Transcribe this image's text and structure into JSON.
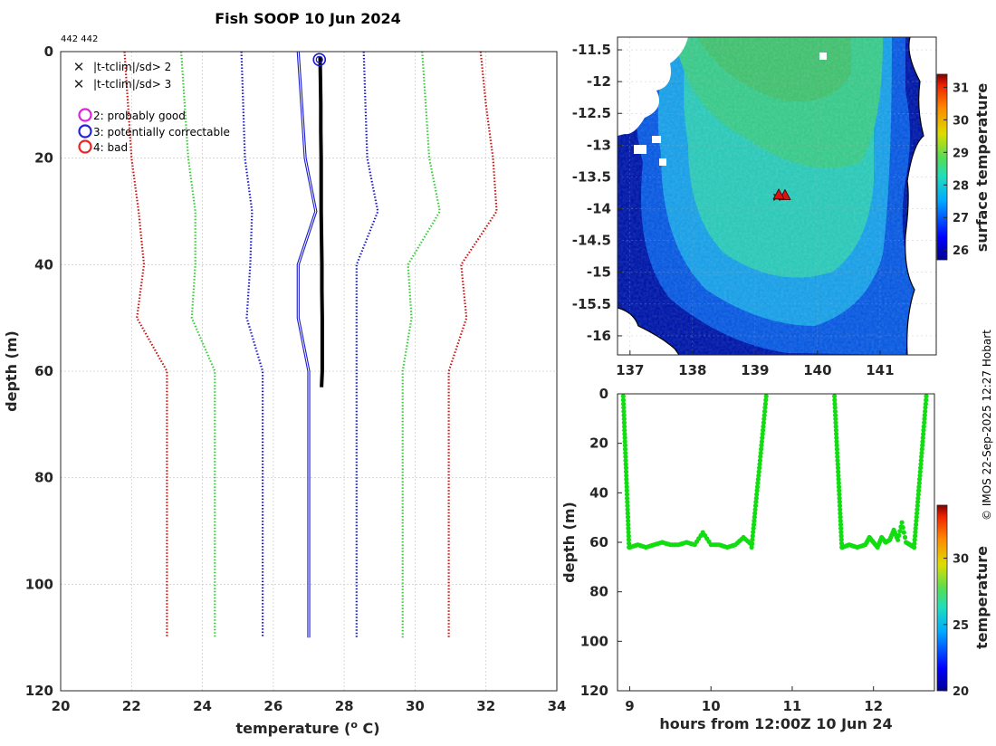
{
  "title": "Fish SOOP 10 Jun 2024",
  "profile_ids": "442 442",
  "credit": "© IMOS 22-Sep-2025 12:27 Hobart",
  "legend": {
    "items": [
      {
        "label": "|t-tclim|/sd> 2",
        "marker": "x",
        "color": "#22cc22"
      },
      {
        "label": "|t-tclim|/sd> 3",
        "marker": "x",
        "color": "#dd2222"
      },
      {
        "label": "2: probably good",
        "marker": "circle",
        "color": "#dd22dd"
      },
      {
        "label": "3: potentially correctable",
        "marker": "circle",
        "color": "#2222dd"
      },
      {
        "label": "4: bad",
        "marker": "circle",
        "color": "#ee2222"
      }
    ]
  },
  "colors": {
    "red": "#cc1111",
    "green": "#33cc33",
    "blue": "#1a1acc",
    "black": "#000000",
    "grid": "#c8c8c8"
  },
  "chart_data": [
    {
      "id": "profile",
      "type": "line",
      "title": "Fish SOOP 10 Jun 2024",
      "xlabel": "temperature (° C)",
      "ylabel": "depth (m)",
      "xlim": [
        20,
        34
      ],
      "ylim": [
        0,
        120
      ],
      "y_reversed": true,
      "grid": true,
      "xticks": [
        "20",
        "22",
        "24",
        "26",
        "28",
        "30",
        "32",
        "34"
      ],
      "yticks": [
        "0",
        "20",
        "40",
        "60",
        "80",
        "100",
        "120"
      ],
      "clim_depth": [
        0,
        10,
        20,
        30,
        40,
        50,
        60,
        110
      ],
      "series": [
        {
          "name": "clim -3sd",
          "style": "dotted",
          "color": "#cc1111",
          "x": [
            21.8,
            21.9,
            22.0,
            22.2,
            22.35,
            22.15,
            23.0,
            23.0
          ]
        },
        {
          "name": "clim -2sd",
          "style": "dotted",
          "color": "#33cc33",
          "x": [
            23.4,
            23.5,
            23.6,
            23.8,
            23.8,
            23.7,
            24.35,
            24.35
          ]
        },
        {
          "name": "clim -1sd",
          "style": "dotted",
          "color": "#1a1acc",
          "x": [
            25.1,
            25.15,
            25.2,
            25.4,
            25.35,
            25.25,
            25.7,
            25.7
          ]
        },
        {
          "name": "climatology mean",
          "style": "solid",
          "color": "#1a1acc",
          "x": [
            26.7,
            26.8,
            26.9,
            27.2,
            26.7,
            26.7,
            27.0,
            27.0
          ]
        },
        {
          "name": "clim +1sd",
          "style": "dotted",
          "color": "#1a1acc",
          "x": [
            28.55,
            28.6,
            28.65,
            28.95,
            28.35,
            28.35,
            28.35,
            28.35
          ]
        },
        {
          "name": "clim +2sd",
          "style": "dotted",
          "color": "#33cc33",
          "x": [
            30.2,
            30.3,
            30.4,
            30.7,
            29.8,
            29.9,
            29.65,
            29.65
          ]
        },
        {
          "name": "clim +3sd",
          "style": "dotted",
          "color": "#cc1111",
          "x": [
            31.85,
            32.0,
            32.2,
            32.3,
            31.3,
            31.45,
            30.95,
            30.95
          ]
        },
        {
          "name": "measured profile",
          "style": "thick",
          "color": "#000000",
          "depth": [
            1,
            5,
            10,
            15,
            20,
            25,
            30,
            35,
            40,
            45,
            50,
            55,
            60,
            63
          ],
          "x": [
            27.32,
            27.33,
            27.34,
            27.34,
            27.35,
            27.35,
            27.35,
            27.36,
            27.37,
            27.37,
            27.38,
            27.38,
            27.38,
            27.36
          ]
        }
      ],
      "flag_marker": {
        "label": "surface flag",
        "x": 27.3,
        "depth": 1.5,
        "color": "#1a1acc"
      }
    },
    {
      "id": "sst_map",
      "type": "heatmap",
      "xlim": [
        136.8,
        141.9
      ],
      "ylim": [
        -16.3,
        -11.3
      ],
      "xticks": [
        "137",
        "138",
        "139",
        "140",
        "141"
      ],
      "yticks": [
        "-11.5",
        "-12",
        "-12.5",
        "-13",
        "-13.5",
        "-14",
        "-14.5",
        "-15",
        "-15.5",
        "-16"
      ],
      "colorbar": {
        "label": "surface temperature",
        "range": [
          25.7,
          31.4
        ],
        "ticks": [
          "26",
          "27",
          "28",
          "29",
          "30",
          "31"
        ]
      },
      "markers": [
        {
          "lon": 139.35,
          "lat": -13.82,
          "symbol": "x",
          "color": "#22cc22"
        },
        {
          "lon": 139.48,
          "lat": -13.8,
          "symbol": "triangle",
          "color": "#dd1111"
        },
        {
          "lon": 139.38,
          "lat": -13.79,
          "symbol": "triangle",
          "color": "#dd1111"
        }
      ]
    },
    {
      "id": "depth_time",
      "type": "scatter",
      "xlabel": "hours from 12:00Z 10 Jun 24",
      "ylabel": "depth (m)",
      "xlim": [
        8.85,
        12.75
      ],
      "ylim": [
        0,
        120
      ],
      "y_reversed": true,
      "xticks": [
        "9",
        "10",
        "11",
        "12"
      ],
      "yticks": [
        "0",
        "20",
        "40",
        "60",
        "80",
        "100",
        "120"
      ],
      "colorbar": {
        "label": "temperature",
        "range": [
          20,
          34
        ],
        "ticks": [
          "20",
          "25",
          "30"
        ]
      },
      "casts": [
        {
          "descent_t": [
            8.92,
            8.95,
            8.98
          ],
          "bottom_t": [
            9.0,
            9.1,
            9.2,
            9.3,
            9.4,
            9.5,
            9.6,
            9.7,
            9.8,
            9.9,
            10.0,
            10.1,
            10.2,
            10.3,
            10.4,
            10.5
          ],
          "bottom_depth": [
            62,
            61,
            62,
            61,
            60,
            61,
            61,
            60,
            61,
            56,
            61,
            61,
            62,
            61,
            58,
            61
          ],
          "ascent_t": [
            10.55,
            10.6,
            10.65,
            10.68
          ],
          "ascent_depth": [
            58,
            35,
            15,
            1
          ]
        },
        {
          "descent_t": [
            11.52,
            11.55,
            11.58
          ],
          "bottom_t": [
            11.62,
            11.7,
            11.8,
            11.9,
            11.95,
            12.0,
            12.05,
            12.1,
            12.15,
            12.2,
            12.25,
            12.3,
            12.35,
            12.4,
            12.45,
            12.5
          ],
          "bottom_depth": [
            62,
            61,
            62,
            61,
            58,
            60,
            62,
            58,
            60,
            59,
            55,
            59,
            52,
            60,
            61,
            62
          ],
          "ascent_t": [
            12.55,
            12.58,
            12.62,
            12.65
          ],
          "ascent_depth": [
            55,
            35,
            15,
            1
          ]
        }
      ]
    }
  ]
}
